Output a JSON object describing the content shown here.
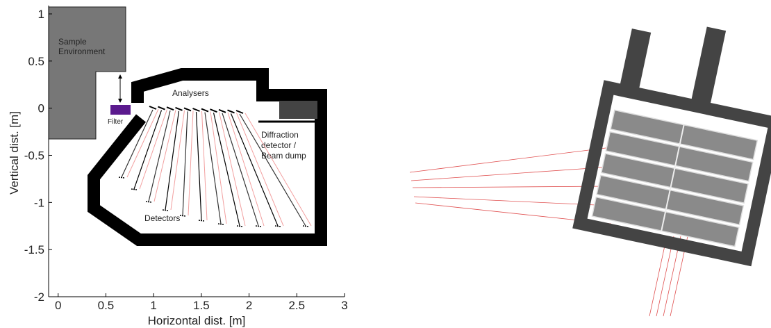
{
  "plot": {
    "xlabel": "Horizontal dist. [m]",
    "ylabel": "Vertical dist. [m]",
    "xlim": [
      -0.1,
      3
    ],
    "ylim": [
      -2,
      1
    ],
    "xticks": [
      0,
      0.5,
      1,
      1.5,
      2,
      2.5,
      3
    ],
    "yticks": [
      -2,
      -1.5,
      -1,
      -0.5,
      0,
      0.5,
      1
    ]
  },
  "labels": {
    "sample_environment": [
      "Sample",
      "Environment"
    ],
    "filter": "Filter",
    "analysers": "Analysers",
    "diffraction": [
      "Diffraction",
      "detector /",
      "Beam dump"
    ],
    "detectors": "Detectors"
  }
}
